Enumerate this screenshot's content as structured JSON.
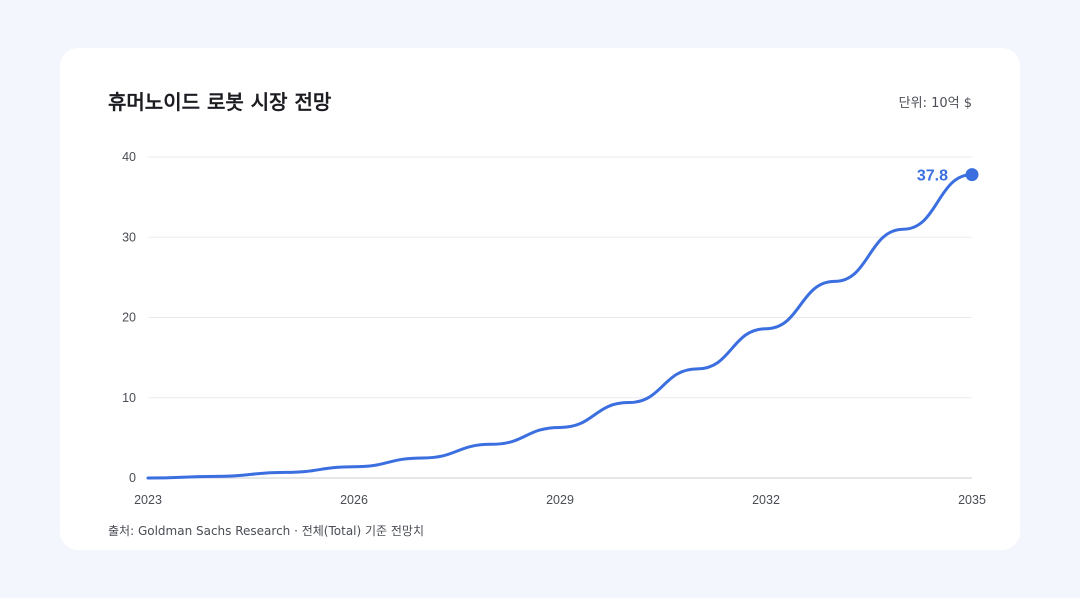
{
  "title": "휴머노이드 로봇 시장 전망",
  "unit_label": "단위: 10억 $",
  "source_note": "출처: Goldman Sachs Research · 전체(Total) 기준 전망치",
  "colors": {
    "line": "#3b6fe0",
    "grid": "#e9ebef",
    "axis": "#c9ccd2",
    "background": "#f3f6fc",
    "card": "#ffffff"
  },
  "chart_data": {
    "type": "line",
    "title": "휴머노이드 로봇 시장 전망",
    "xlabel": "",
    "ylabel": "",
    "x": [
      2023,
      2024,
      2025,
      2026,
      2027,
      2028,
      2029,
      2030,
      2031,
      2032,
      2033,
      2034,
      2035
    ],
    "series": [
      {
        "values": [
          0.0,
          0.2,
          0.7,
          1.4,
          2.5,
          4.2,
          6.3,
          9.4,
          13.6,
          18.6,
          24.5,
          31.0,
          37.8
        ]
      }
    ],
    "x_ticks": [
      2023,
      2026,
      2029,
      2032,
      2035
    ],
    "y_ticks": [
      0,
      10,
      20,
      30,
      40
    ],
    "ylim": [
      0,
      40
    ],
    "xlim": [
      2023,
      2035
    ],
    "grid": "horizontal",
    "end_label": "37.8"
  }
}
